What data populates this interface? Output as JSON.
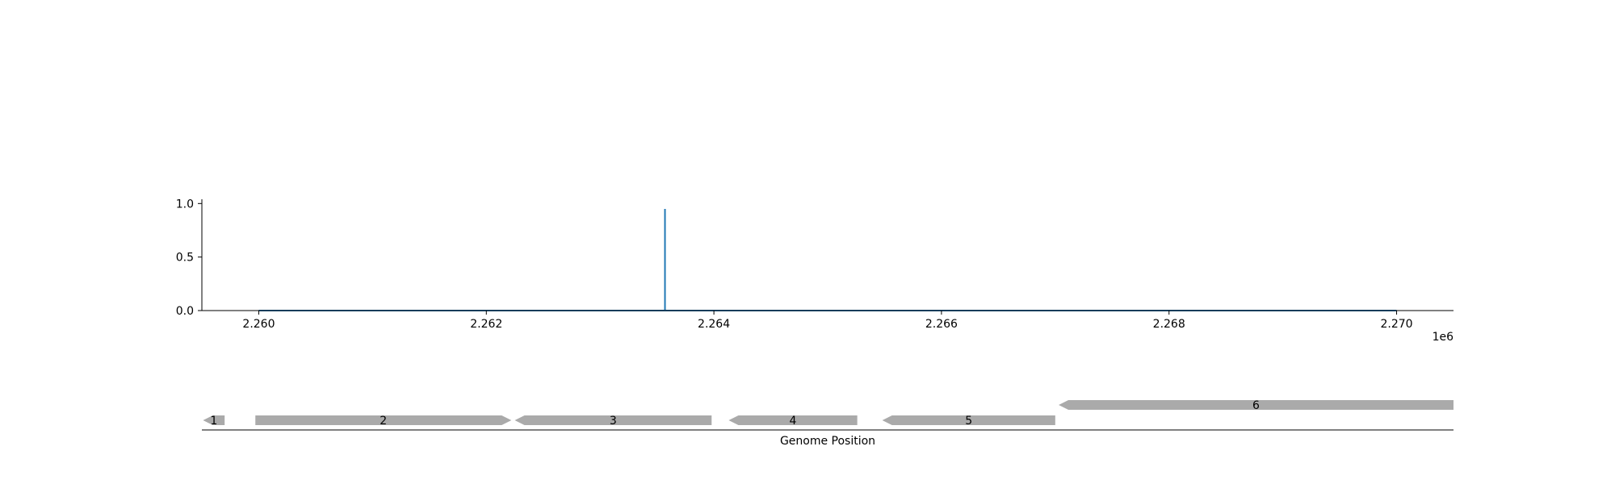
{
  "chart_data": [
    {
      "type": "line",
      "x_offset_label": "1e6",
      "x_ticks": [
        2260000,
        2262000,
        2264000,
        2266000,
        2268000,
        2270000
      ],
      "x_tick_labels": [
        "2.260",
        "2.262",
        "2.264",
        "2.266",
        "2.268",
        "2.270"
      ],
      "xlim": [
        2259500,
        2270500
      ],
      "y_ticks": [
        0.0,
        0.5,
        1.0
      ],
      "y_tick_labels": [
        "0.0",
        "0.5",
        "1.0"
      ],
      "ylim": [
        0,
        1.04
      ],
      "series": [
        {
          "color": "#1f77b4",
          "x": [
            2260000,
            2263570,
            2263570,
            2263570,
            2263570,
            2270000
          ],
          "y": [
            0,
            0,
            0.95,
            0.95,
            0,
            0
          ]
        }
      ],
      "grid": false
    },
    {
      "type": "gene-track",
      "xlabel": "Genome Position",
      "xlim": [
        2259500,
        2270500
      ],
      "gene_color": "#aaaaaa",
      "genes": [
        {
          "label": "1",
          "start": 2259510,
          "end": 2259700,
          "strand": -1,
          "row": 0
        },
        {
          "label": "2",
          "start": 2259970,
          "end": 2262220,
          "strand": 1,
          "row": 0
        },
        {
          "label": "3",
          "start": 2262250,
          "end": 2263980,
          "strand": -1,
          "row": 0
        },
        {
          "label": "4",
          "start": 2264130,
          "end": 2265260,
          "strand": -1,
          "row": 0
        },
        {
          "label": "5",
          "start": 2265480,
          "end": 2267000,
          "strand": -1,
          "row": 0
        },
        {
          "label": "6",
          "start": 2267030,
          "end": 2270500,
          "strand": -1,
          "row": 1
        }
      ]
    }
  ]
}
